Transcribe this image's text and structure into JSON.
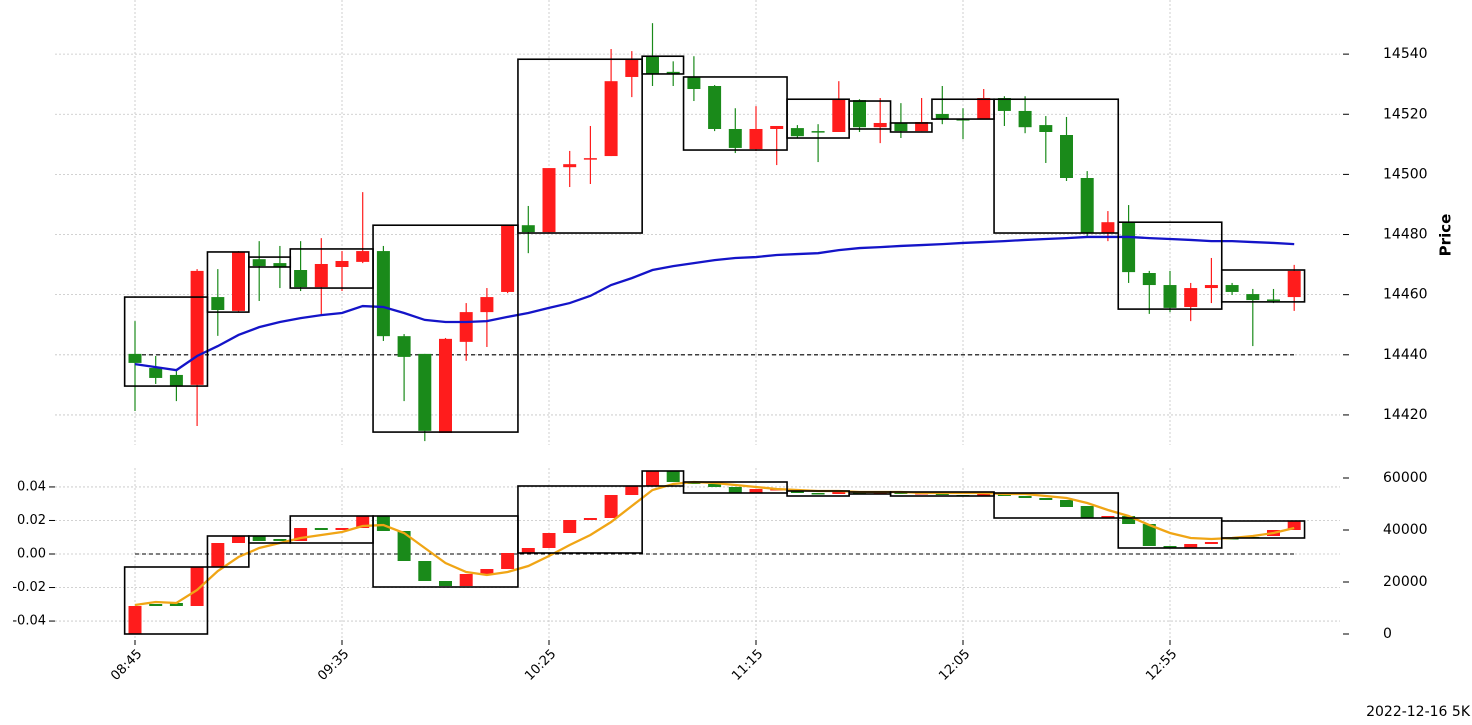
{
  "chart_data": [
    {
      "type": "candlestick",
      "y_axis_position": "right",
      "ylabel": "Price",
      "grid": true,
      "up_color": "#ff1c1c",
      "down_color": "#1a8a1a",
      "ylim": [
        14410,
        14558
      ],
      "yticks": [
        14420,
        14440,
        14460,
        14480,
        14500,
        14520,
        14540
      ],
      "open": [
        14440.3,
        14435.6,
        14433.3,
        14430,
        14459.2,
        14454.6,
        14471.8,
        14470.5,
        14468.2,
        14462.5,
        14469.2,
        14470.9,
        14474.5,
        14446.2,
        14440.3,
        14414,
        14444.3,
        14454.2,
        14460.9,
        14483.1,
        14480.8,
        14502.4,
        14505,
        14506.1,
        14532.4,
        14539.3,
        14534.1,
        14532.4,
        14529.4,
        14515.1,
        14508.4,
        14515.1,
        14515.4,
        14514.4,
        14514.1,
        14524.7,
        14515.7,
        14517.1,
        14514.4,
        14520.1,
        14518.4,
        14518.4,
        14525.4,
        14521.1,
        14516.4,
        14513.1,
        14498.8,
        14480.5,
        14484.1,
        14467.2,
        14463.2,
        14455.9,
        14462.2,
        14463.2,
        14460.2,
        14458.4,
        14459.2
      ],
      "high": [
        14451.2,
        14439.6,
        14434.6,
        14468.5,
        14468.5,
        14474.5,
        14477.8,
        14476.2,
        14477.8,
        14478.8,
        14474.5,
        14494.1,
        14476.2,
        14446.9,
        14440.3,
        14445.6,
        14457.2,
        14462.2,
        14483.1,
        14489.5,
        14502.1,
        14507.8,
        14516.1,
        14541.7,
        14541,
        14550.3,
        14537.6,
        14539.3,
        14529.7,
        14522,
        14522.7,
        14516.1,
        14516.4,
        14516.7,
        14531,
        14525,
        14525.4,
        14523.7,
        14525.4,
        14529.4,
        14522,
        14528.4,
        14526,
        14526,
        14519.4,
        14519.1,
        14501.1,
        14487.8,
        14489.8,
        14467.9,
        14467.9,
        14463.9,
        14472.2,
        14463.9,
        14461.9,
        14461.9,
        14469.9
      ],
      "low": [
        14421.3,
        14430.3,
        14424.6,
        14416.3,
        14446.3,
        14454.2,
        14457.9,
        14462.2,
        14461.2,
        14453.2,
        14461.2,
        14470.5,
        14444.6,
        14424.6,
        14411.3,
        14414,
        14438,
        14442.6,
        14460.5,
        14473.8,
        14480.5,
        14495.8,
        14496.8,
        14506.1,
        14525.7,
        14529.4,
        14529.4,
        14524.4,
        14514.4,
        14507.1,
        14507.8,
        14503.1,
        14512.1,
        14504.1,
        14514.1,
        14514.1,
        14510.4,
        14512.1,
        14514.4,
        14516.7,
        14511.7,
        14518.4,
        14516.1,
        14513.7,
        14503.8,
        14497.8,
        14479.2,
        14477.8,
        14463.9,
        14453.6,
        14454.2,
        14451.2,
        14457.2,
        14459.9,
        14442.9,
        14457.2,
        14454.6
      ],
      "close": [
        14437.3,
        14432.3,
        14429.6,
        14467.9,
        14454.9,
        14474.2,
        14469.5,
        14469.2,
        14462.5,
        14470.2,
        14471.2,
        14474.5,
        14446.2,
        14439.3,
        14414.7,
        14445.3,
        14454.2,
        14459.2,
        14483.1,
        14480.8,
        14502.1,
        14503.4,
        14505.4,
        14531,
        14538.3,
        14533.4,
        14533.4,
        14528.4,
        14515.1,
        14508.8,
        14515.1,
        14516.1,
        14512.7,
        14514.1,
        14525,
        14515.7,
        14517.1,
        14514.4,
        14517.4,
        14518.4,
        14518.1,
        14525.4,
        14521.1,
        14515.7,
        14514.1,
        14498.8,
        14480.5,
        14484.1,
        14467.5,
        14463.2,
        14455.6,
        14462.2,
        14463.2,
        14460.9,
        14458.2,
        14458.2,
        14467.9
      ],
      "lines": [
        {
          "color": "#1414c8",
          "values": [
            14436.9,
            14435.9,
            14434.9,
            14439.6,
            14442.9,
            14446.6,
            14449.2,
            14450.9,
            14452.2,
            14453.2,
            14453.9,
            14456.2,
            14455.9,
            14453.9,
            14451.6,
            14450.9,
            14450.9,
            14451.2,
            14452.6,
            14453.9,
            14455.6,
            14457.2,
            14459.6,
            14463.2,
            14465.5,
            14468.2,
            14469.5,
            14470.5,
            14471.5,
            14472.2,
            14472.5,
            14473.2,
            14473.5,
            14473.8,
            14474.8,
            14475.5,
            14475.8,
            14476.2,
            14476.5,
            14476.8,
            14477.2,
            14477.5,
            14477.8,
            14478.2,
            14478.5,
            14478.8,
            14479.2,
            14479.2,
            14479.2,
            14478.8,
            14478.5,
            14478.2,
            14477.8,
            14477.8,
            14477.5,
            14477.2,
            14476.8
          ]
        }
      ],
      "hlines": [
        {
          "value": 14440
        }
      ],
      "boxes": [
        {
          "start": 0,
          "end": 3,
          "high": 14459.2,
          "low": 14429.6
        },
        {
          "start": 4,
          "end": 5,
          "high": 14474.2,
          "low": 14454.2
        },
        {
          "start": 6,
          "end": 7,
          "high": 14472.5,
          "low": 14469.2
        },
        {
          "start": 8,
          "end": 11,
          "high": 14475.2,
          "low": 14462.2
        },
        {
          "start": 12,
          "end": 18,
          "high": 14483.1,
          "low": 14414.3
        },
        {
          "start": 19,
          "end": 24,
          "high": 14538.3,
          "low": 14480.5
        },
        {
          "start": 25,
          "end": 26,
          "high": 14539.3,
          "low": 14533.4
        },
        {
          "start": 27,
          "end": 31,
          "high": 14532.4,
          "low": 14508.1
        },
        {
          "start": 32,
          "end": 34,
          "high": 14525,
          "low": 14512.1
        },
        {
          "start": 35,
          "end": 36,
          "high": 14524.4,
          "low": 14515.1
        },
        {
          "start": 37,
          "end": 38,
          "high": 14517.1,
          "low": 14514.1
        },
        {
          "start": 39,
          "end": 41,
          "high": 14525,
          "low": 14518.4
        },
        {
          "start": 42,
          "end": 47,
          "high": 14525,
          "low": 14480.5
        },
        {
          "start": 48,
          "end": 52,
          "high": 14484.1,
          "low": 14455.2
        },
        {
          "start": 53,
          "end": 56,
          "high": 14468.2,
          "low": 14457.6
        }
      ]
    },
    {
      "type": "candlestick",
      "y_axis_position": "left",
      "candle_axis": "y2",
      "grid": true,
      "up_color": "#ff1c1c",
      "down_color": "#1a8a1a",
      "categories": [
        "08:45",
        null,
        null,
        null,
        null,
        null,
        null,
        null,
        null,
        null,
        "09:35",
        null,
        null,
        null,
        null,
        null,
        null,
        null,
        null,
        null,
        "10:25",
        null,
        null,
        null,
        null,
        null,
        null,
        null,
        null,
        null,
        "11:15",
        null,
        null,
        null,
        null,
        null,
        null,
        null,
        null,
        null,
        "12:05",
        null,
        null,
        null,
        null,
        null,
        null,
        null,
        null,
        null,
        "12:55",
        null,
        null,
        null,
        null,
        null,
        null
      ],
      "ylim": [
        -0.0513,
        0.0513
      ],
      "yticks": [
        -0.04,
        -0.02,
        {
          "value": 0,
          "label": "0.00"
        },
        0.02,
        0.04
      ],
      "y2lim": [
        -2308,
        63846
      ],
      "y2ticks": [
        0,
        20000,
        40000,
        60000
      ],
      "open": [
        0,
        11538,
        11923,
        10769,
        25769,
        35000,
        37692,
        36538,
        35769,
        40769,
        40000,
        40769,
        45385,
        39615,
        28077,
        20385,
        18462,
        23077,
        25000,
        31154,
        33077,
        38846,
        43846,
        44615,
        53462,
        56923,
        62692,
        58462,
        57692,
        56538,
        54231,
        55385,
        55385,
        54231,
        53846,
        55000,
        53846,
        54615,
        53846,
        54231,
        53462,
        53077,
        54231,
        53077,
        52308,
        51538,
        49231,
        44615,
        45385,
        42308,
        33846,
        33077,
        34615,
        36923,
        37308,
        37692,
        40000
      ],
      "close": [
        10769,
        10769,
        10769,
        25769,
        35000,
        37692,
        35769,
        35769,
        40769,
        40000,
        40769,
        45385,
        39615,
        28077,
        20385,
        18462,
        23077,
        25000,
        31154,
        33077,
        38846,
        43846,
        44615,
        53462,
        56923,
        62692,
        58462,
        57692,
        56538,
        54231,
        55769,
        55769,
        54231,
        53846,
        55000,
        53846,
        54615,
        53846,
        54231,
        53462,
        53077,
        54231,
        53077,
        52308,
        51538,
        48846,
        44615,
        45385,
        42308,
        33846,
        33077,
        34615,
        35385,
        36538,
        36923,
        40000,
        43462
      ],
      "lines": [
        {
          "color": "#f0a515",
          "axis": "y2",
          "values": [
            11154,
            12308,
            11923,
            16923,
            24231,
            29615,
            33077,
            35000,
            36923,
            38077,
            39231,
            41538,
            41923,
            38846,
            33077,
            27308,
            23846,
            22692,
            23846,
            26154,
            30000,
            34231,
            38077,
            43077,
            49231,
            55385,
            57692,
            58462,
            58077,
            57308,
            56538,
            55769,
            55385,
            55000,
            55000,
            54615,
            54615,
            54615,
            54231,
            54231,
            54231,
            54231,
            53846,
            53846,
            53077,
            52308,
            50385,
            47692,
            45385,
            41923,
            38846,
            36923,
            36538,
            36923,
            37692,
            38846,
            40769
          ]
        }
      ],
      "hlines": [
        {
          "value": 0
        }
      ],
      "boxes": [
        {
          "start": 0,
          "end": 3,
          "high": 25769,
          "low": 0
        },
        {
          "start": 4,
          "end": 5,
          "high": 37692,
          "low": 25769
        },
        {
          "start": 6,
          "end": 7,
          "high": 37692,
          "low": 35000
        },
        {
          "start": 8,
          "end": 11,
          "high": 45385,
          "low": 35000
        },
        {
          "start": 12,
          "end": 18,
          "high": 45385,
          "low": 18077
        },
        {
          "start": 19,
          "end": 24,
          "high": 56923,
          "low": 31154
        },
        {
          "start": 25,
          "end": 26,
          "high": 62692,
          "low": 56923
        },
        {
          "start": 27,
          "end": 31,
          "high": 58462,
          "low": 54231
        },
        {
          "start": 32,
          "end": 34,
          "high": 55000,
          "low": 53077
        },
        {
          "start": 35,
          "end": 36,
          "high": 54615,
          "low": 53846
        },
        {
          "start": 37,
          "end": 41,
          "high": 54615,
          "low": 53077
        },
        {
          "start": 42,
          "end": 47,
          "high": 54231,
          "low": 44615
        },
        {
          "start": 48,
          "end": 52,
          "high": 44615,
          "low": 33077
        },
        {
          "start": 53,
          "end": 56,
          "high": 43462,
          "low": 36923
        }
      ],
      "annotation": "2022-12-16 5K"
    }
  ]
}
